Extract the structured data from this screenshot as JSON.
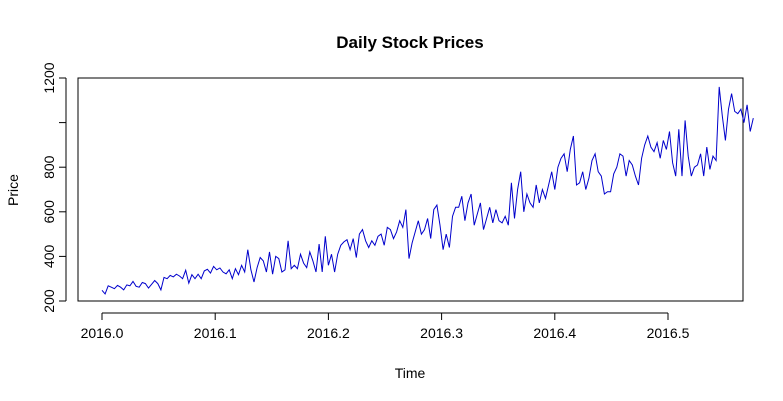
{
  "chart_data": {
    "type": "line",
    "title": "Daily Stock Prices",
    "xlabel": "Time",
    "ylabel": "Price",
    "xlim": [
      2016.0,
      2016.55
    ],
    "ylim": [
      200,
      1200
    ],
    "x_ticks": [
      2016.0,
      2016.1,
      2016.2,
      2016.3,
      2016.4,
      2016.5
    ],
    "x_tick_labels": [
      "2016.0",
      "2016.1",
      "2016.2",
      "2016.3",
      "2016.4",
      "2016.5"
    ],
    "y_ticks": [
      200,
      400,
      600,
      800,
      1000,
      1200
    ],
    "y_tick_labels": [
      "200",
      "400",
      "600",
      "800",
      "",
      "1200"
    ],
    "grid": false,
    "line_color": "#0000cc",
    "series": [
      {
        "x_start": 2016.0,
        "x_step": 0.0027397,
        "values": [
          248,
          232,
          268,
          262,
          255,
          270,
          262,
          250,
          272,
          268,
          288,
          266,
          262,
          283,
          278,
          258,
          275,
          292,
          278,
          250,
          306,
          300,
          315,
          308,
          320,
          312,
          300,
          338,
          280,
          318,
          300,
          320,
          300,
          335,
          342,
          325,
          355,
          340,
          348,
          330,
          322,
          340,
          300,
          345,
          318,
          360,
          330,
          430,
          340,
          285,
          350,
          395,
          380,
          330,
          420,
          320,
          400,
          390,
          330,
          340,
          470,
          345,
          360,
          345,
          410,
          370,
          350,
          420,
          380,
          330,
          455,
          330,
          490,
          360,
          410,
          330,
          410,
          450,
          465,
          475,
          430,
          480,
          395,
          500,
          520,
          470,
          440,
          470,
          450,
          490,
          500,
          450,
          530,
          520,
          480,
          510,
          560,
          530,
          610,
          390,
          460,
          510,
          560,
          500,
          520,
          570,
          480,
          610,
          630,
          540,
          430,
          500,
          440,
          580,
          620,
          620,
          670,
          560,
          640,
          680,
          540,
          590,
          640,
          520,
          570,
          620,
          550,
          610,
          560,
          550,
          580,
          540,
          730,
          570,
          700,
          780,
          600,
          680,
          640,
          620,
          720,
          640,
          700,
          660,
          720,
          780,
          700,
          800,
          840,
          860,
          780,
          880,
          940,
          720,
          730,
          780,
          700,
          750,
          830,
          860,
          780,
          760,
          680,
          690,
          690,
          770,
          800,
          860,
          850,
          760,
          830,
          810,
          760,
          720,
          840,
          900,
          940,
          890,
          870,
          910,
          840,
          920,
          880,
          960,
          820,
          760,
          970,
          760,
          1010,
          850,
          760,
          800,
          810,
          860,
          760,
          890,
          790,
          850,
          830,
          1160,
          1030,
          920,
          1060,
          1130,
          1050,
          1040,
          1060,
          1000,
          1080,
          960,
          1020
        ]
      }
    ]
  }
}
